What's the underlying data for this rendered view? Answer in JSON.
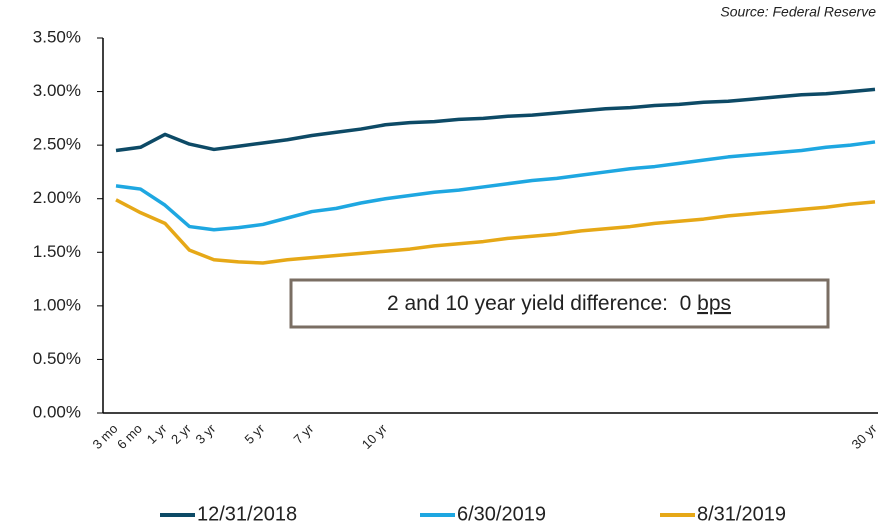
{
  "chart_data": {
    "type": "line",
    "source": "Source: Federal Reserve",
    "annotation": {
      "label": "2 and 10 year yield difference:",
      "value": "0",
      "unit": "bps"
    },
    "categories": [
      "3 mo",
      "6 mo",
      "1 yr",
      "2 yr",
      "3 yr",
      null,
      "5 yr",
      null,
      "7 yr",
      null,
      null,
      "10 yr",
      null,
      null,
      null,
      null,
      null,
      null,
      null,
      null,
      null,
      null,
      null,
      null,
      null,
      null,
      null,
      null,
      null,
      null,
      null,
      "30 yr"
    ],
    "series": [
      {
        "name": "12/31/2018",
        "color": "#0d4a66",
        "values": [
          2.45,
          2.48,
          2.6,
          2.51,
          2.46,
          2.49,
          2.52,
          2.55,
          2.59,
          2.62,
          2.65,
          2.69,
          2.71,
          2.72,
          2.74,
          2.75,
          2.77,
          2.78,
          2.8,
          2.82,
          2.84,
          2.85,
          2.87,
          2.88,
          2.9,
          2.91,
          2.93,
          2.95,
          2.97,
          2.98,
          3.0,
          3.02
        ]
      },
      {
        "name": "6/30/2019",
        "color": "#1ea7e1",
        "values": [
          2.12,
          2.09,
          1.94,
          1.74,
          1.71,
          1.73,
          1.76,
          1.82,
          1.88,
          1.91,
          1.96,
          2.0,
          2.03,
          2.06,
          2.08,
          2.11,
          2.14,
          2.17,
          2.19,
          2.22,
          2.25,
          2.28,
          2.3,
          2.33,
          2.36,
          2.39,
          2.41,
          2.43,
          2.45,
          2.48,
          2.5,
          2.53
        ]
      },
      {
        "name": "8/31/2019",
        "color": "#e6a817",
        "values": [
          1.99,
          1.87,
          1.77,
          1.52,
          1.43,
          1.41,
          1.4,
          1.43,
          1.45,
          1.47,
          1.49,
          1.51,
          1.53,
          1.56,
          1.58,
          1.6,
          1.63,
          1.65,
          1.67,
          1.7,
          1.72,
          1.74,
          1.77,
          1.79,
          1.81,
          1.84,
          1.86,
          1.88,
          1.9,
          1.92,
          1.95,
          1.97
        ]
      }
    ],
    "ylim": [
      0,
      3.5
    ],
    "yticks": [
      {
        "value": 0,
        "label": "0.00%"
      },
      {
        "value": 0.5,
        "label": "0.50%"
      },
      {
        "value": 1,
        "label": "1.00%"
      },
      {
        "value": 1.5,
        "label": "1.50%"
      },
      {
        "value": 2,
        "label": "2.00%"
      },
      {
        "value": 2.5,
        "label": "2.50%"
      },
      {
        "value": 3,
        "label": "3.00%"
      },
      {
        "value": 3.5,
        "label": "3.50%"
      }
    ],
    "grid": false,
    "legend": "bottom"
  }
}
